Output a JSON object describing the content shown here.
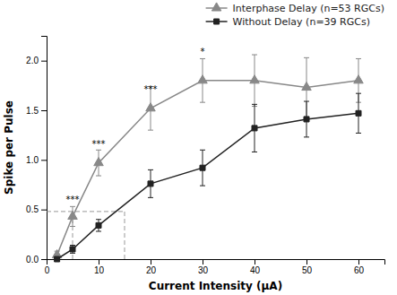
{
  "chart_data": {
    "type": "line",
    "x": [
      2,
      5,
      10,
      20,
      30,
      40,
      50,
      60
    ],
    "series": [
      {
        "name": "Interphase Delay (n=53 RGCs)",
        "color": "#888888",
        "marker": "triangle",
        "line_style": "solid",
        "values": [
          0.04,
          0.43,
          0.97,
          1.52,
          1.8,
          1.8,
          1.73,
          1.8
        ],
        "errors": [
          0.04,
          0.1,
          0.13,
          0.22,
          0.22,
          0.26,
          0.3,
          0.22
        ]
      },
      {
        "name": "Without Delay (n=39 RGCs)",
        "color": "#222222",
        "marker": "square",
        "line_style": "solid",
        "values": [
          0.0,
          0.1,
          0.34,
          0.76,
          0.92,
          1.32,
          1.41,
          1.47
        ],
        "errors": [
          0.0,
          0.04,
          0.06,
          0.14,
          0.18,
          0.24,
          0.18,
          0.2
        ]
      }
    ],
    "xlabel": "Current Intensity (μA)",
    "ylabel": "Spike per Pulse",
    "xlim": [
      0,
      65
    ],
    "ylim": [
      0.0,
      2.25
    ],
    "xticks": [
      0,
      10,
      20,
      30,
      40,
      50,
      60
    ],
    "yticks": [
      {
        "value": 0,
        "label": "0.0"
      },
      {
        "value": 0.5,
        "label": "0.5"
      },
      {
        "value": 1,
        "label": "1.0"
      },
      {
        "value": 1.5,
        "label": "1.5"
      },
      {
        "value": 2,
        "label": "2.0"
      }
    ],
    "reference_lines": [
      {
        "x": [
          5,
          5
        ],
        "y": [
          0,
          0.48
        ],
        "line_style": "dashed",
        "color": "#808080"
      },
      {
        "x": [
          15,
          15
        ],
        "y": [
          0,
          0.48
        ],
        "line_style": "dashed",
        "color": "#808080"
      },
      {
        "x": [
          0,
          15
        ],
        "y": [
          0.48,
          0.48
        ],
        "line_style": "dashed",
        "color": "#808080"
      }
    ],
    "annotations": [
      {
        "text": "***",
        "x": 5,
        "y": 0.57
      },
      {
        "text": "***",
        "x": 10,
        "y": 1.13
      },
      {
        "text": "***",
        "x": 20,
        "y": 1.68
      },
      {
        "text": "*",
        "x": 30,
        "y": 2.06
      }
    ],
    "legend": "upper right"
  }
}
